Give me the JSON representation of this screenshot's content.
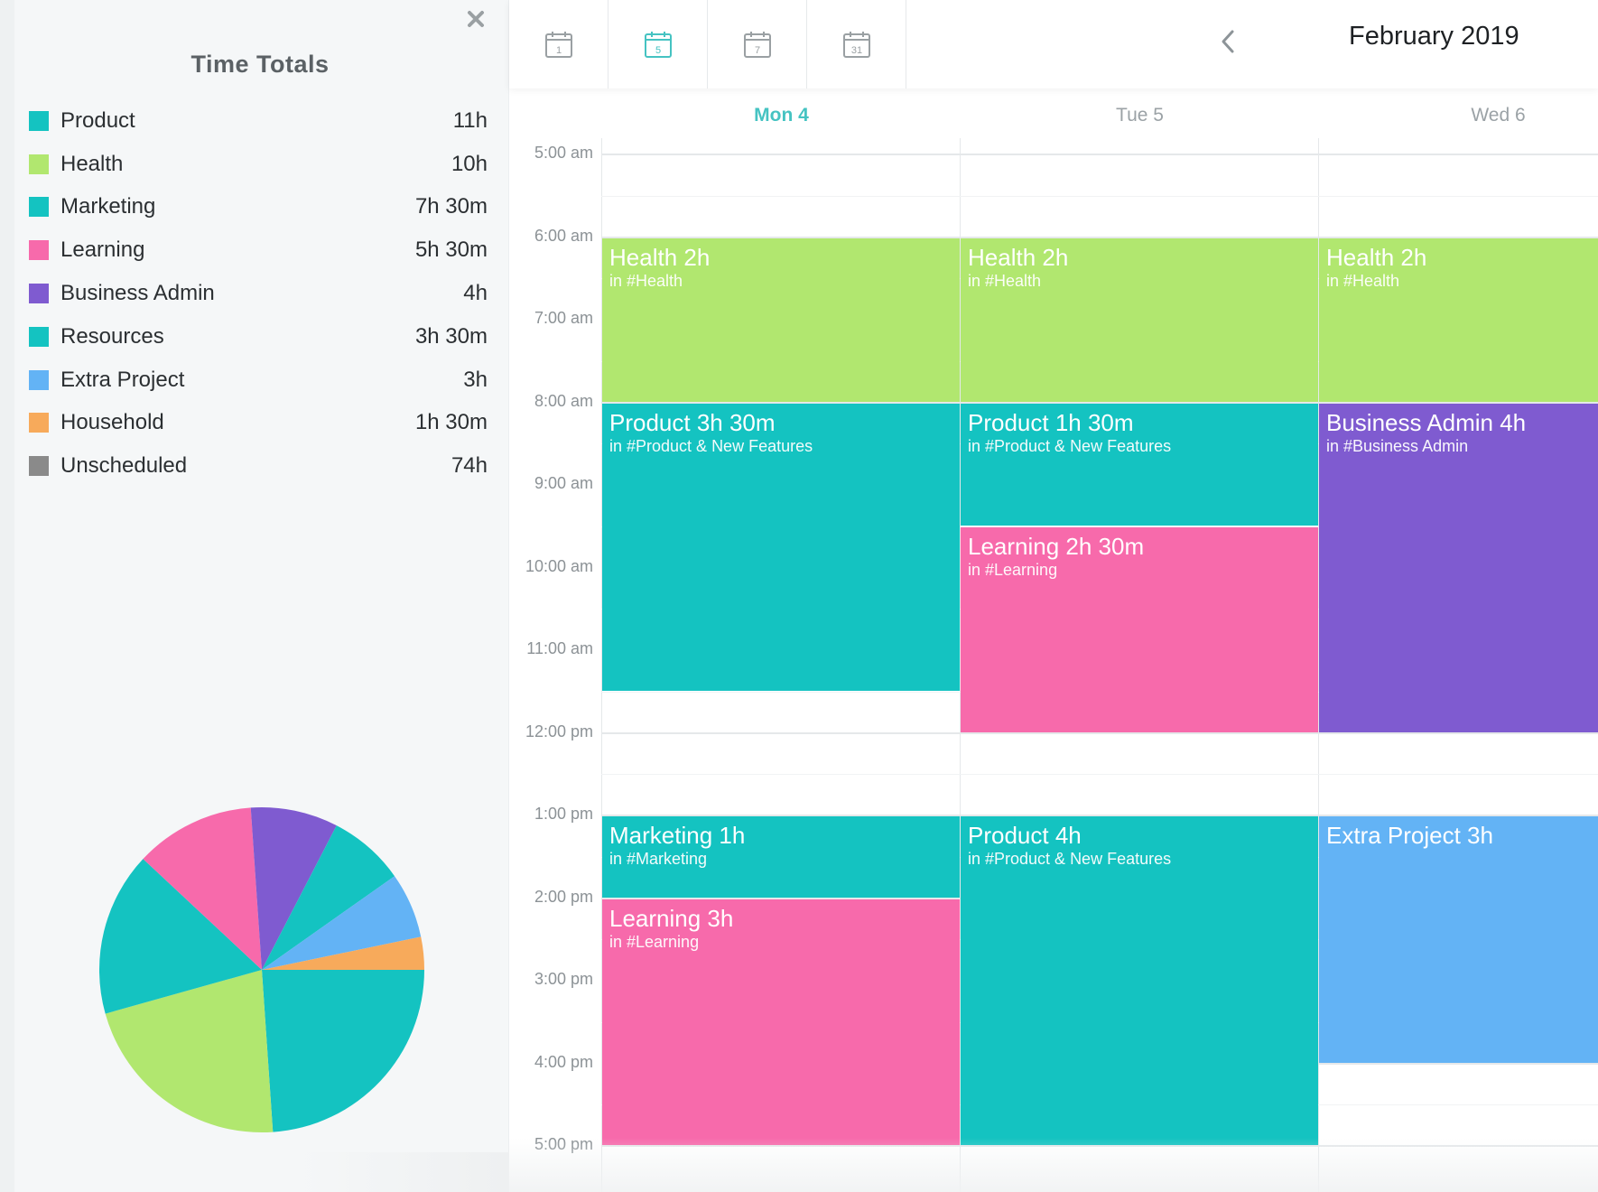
{
  "sidebar": {
    "title": "Time Totals",
    "close_icon": "close-icon",
    "totals": [
      {
        "name": "Product",
        "value": "11h",
        "color": "#14c3c1"
      },
      {
        "name": "Health",
        "value": "10h",
        "color": "#b1e76f"
      },
      {
        "name": "Marketing",
        "value": "7h 30m",
        "color": "#14c3c1"
      },
      {
        "name": "Learning",
        "value": "5h 30m",
        "color": "#f76aab"
      },
      {
        "name": "Business Admin",
        "value": "4h",
        "color": "#7f5bd0"
      },
      {
        "name": "Resources",
        "value": "3h 30m",
        "color": "#14c3c1"
      },
      {
        "name": "Extra Project",
        "value": "3h",
        "color": "#63b3f5"
      },
      {
        "name": "Household",
        "value": "1h 30m",
        "color": "#f7aa5b"
      },
      {
        "name": "Unscheduled",
        "value": "74h",
        "color": "#8a8a8a"
      }
    ]
  },
  "chart_data": {
    "type": "pie",
    "slices": [
      {
        "label": "Product",
        "value": 11,
        "color": "#14c3c1"
      },
      {
        "label": "Health",
        "value": 10,
        "color": "#b1e76f"
      },
      {
        "label": "Marketing",
        "value": 7.5,
        "color": "#14c3c1"
      },
      {
        "label": "Learning",
        "value": 5.5,
        "color": "#f76aab"
      },
      {
        "label": "Business Admin",
        "value": 4,
        "color": "#7f5bd0"
      },
      {
        "label": "Resources",
        "value": 3.5,
        "color": "#14c3c1"
      },
      {
        "label": "Extra Project",
        "value": 3,
        "color": "#63b3f5"
      },
      {
        "label": "Household",
        "value": 1.5,
        "color": "#f7aa5b"
      }
    ]
  },
  "toolbar": {
    "views": [
      {
        "label": "1",
        "icon": "calendar-day-icon",
        "active": false
      },
      {
        "label": "5",
        "icon": "calendar-workweek-icon",
        "active": true
      },
      {
        "label": "7",
        "icon": "calendar-week-icon",
        "active": false
      },
      {
        "label": "31",
        "icon": "calendar-month-icon",
        "active": false
      }
    ],
    "prev_icon": "chevron-left-icon",
    "month_title": "February 2019"
  },
  "calendar": {
    "days": [
      {
        "label": "Mon 4",
        "today": true
      },
      {
        "label": "Tue 5",
        "today": false
      },
      {
        "label": "Wed 6",
        "today": false
      }
    ],
    "start_hour": 5,
    "hours": [
      "5:00 am",
      "6:00 am",
      "7:00 am",
      "8:00 am",
      "9:00 am",
      "10:00 am",
      "11:00 am",
      "12:00 pm",
      "1:00 pm",
      "2:00 pm",
      "3:00 pm",
      "4:00 pm",
      "5:00 pm"
    ],
    "events": [
      {
        "day": 0,
        "start": 6,
        "end": 8,
        "title": "Health 2h",
        "sub": "in #Health",
        "color": "#b1e76f"
      },
      {
        "day": 1,
        "start": 6,
        "end": 8,
        "title": "Health 2h",
        "sub": "in #Health",
        "color": "#b1e76f"
      },
      {
        "day": 2,
        "start": 6,
        "end": 8,
        "title": "Health 2h",
        "sub": "in #Health",
        "color": "#b1e76f"
      },
      {
        "day": 0,
        "start": 8,
        "end": 11.5,
        "title": "Product 3h 30m",
        "sub": "in #Product & New Features",
        "color": "#14c3c1"
      },
      {
        "day": 1,
        "start": 8,
        "end": 9.5,
        "title": "Product 1h 30m",
        "sub": "in #Product & New Features",
        "color": "#14c3c1"
      },
      {
        "day": 1,
        "start": 9.5,
        "end": 12,
        "title": "Learning 2h 30m",
        "sub": "in #Learning",
        "color": "#f76aab"
      },
      {
        "day": 2,
        "start": 8,
        "end": 12,
        "title": "Business Admin 4h",
        "sub": "in #Business Admin",
        "color": "#7f5bd0"
      },
      {
        "day": 0,
        "start": 13,
        "end": 14,
        "title": "Marketing 1h",
        "sub": "in #Marketing",
        "color": "#14c3c1"
      },
      {
        "day": 0,
        "start": 14,
        "end": 17,
        "title": "Learning 3h",
        "sub": "in #Learning",
        "color": "#f76aab"
      },
      {
        "day": 1,
        "start": 13,
        "end": 17,
        "title": "Product 4h",
        "sub": "in #Product & New Features",
        "color": "#14c3c1"
      },
      {
        "day": 2,
        "start": 13,
        "end": 16,
        "title": "Extra Project 3h",
        "sub": "",
        "color": "#63b3f5"
      }
    ]
  }
}
